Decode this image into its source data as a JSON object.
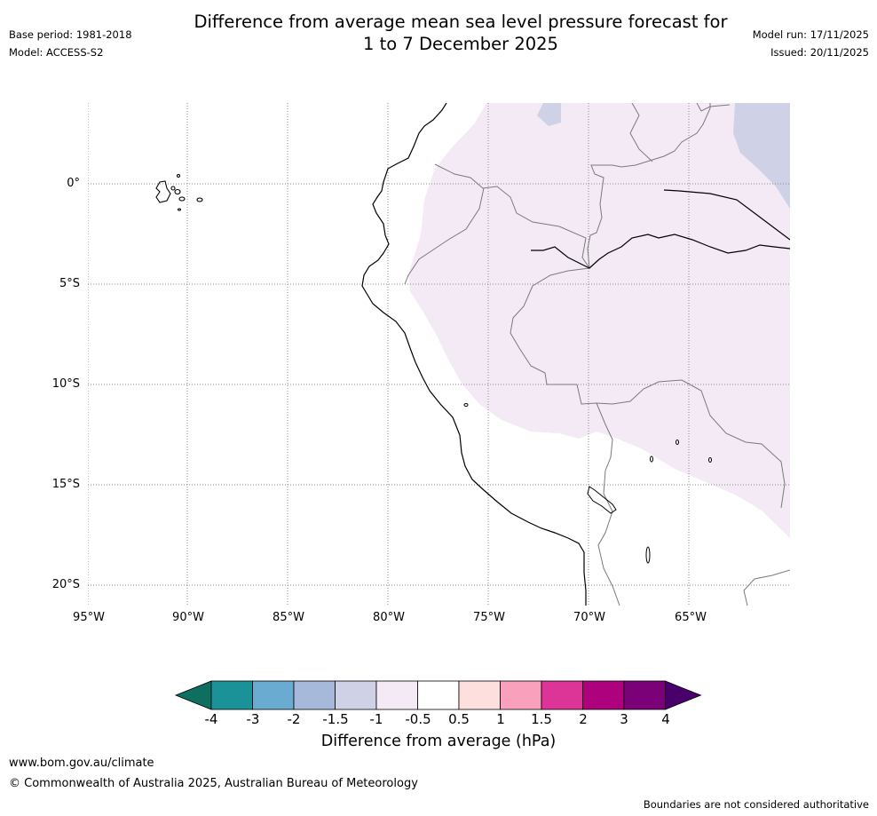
{
  "title": {
    "line1": "Difference from average mean sea level pressure forecast for",
    "line2": "1 to 7 December 2025"
  },
  "metadata": {
    "base_period": "Base period: 1981-2018",
    "model": "Model: ACCESS-S2",
    "model_run": "Model run: 17/11/2025",
    "issued": "Issued: 20/11/2025"
  },
  "map": {
    "region": "Western South America and eastern Pacific Ocean",
    "latitude_labels": [
      "0°",
      "5°S",
      "10°S",
      "15°S",
      "20°S"
    ],
    "longitude_labels": [
      "95°W",
      "90°W",
      "85°W",
      "80°W",
      "75°W",
      "70°W",
      "65°W"
    ],
    "anomaly_areas": [
      {
        "category": "-1 to -0.5 hPa",
        "color": "#f3eaf5",
        "area": "Interior of Peru, Colombia, Brazil and Bolivia"
      },
      {
        "category": "-1.5 to -1 hPa",
        "color": "#cfd2e6",
        "area": "Northeast corner (Venezuela / northern Brazil)"
      }
    ]
  },
  "colorbar": {
    "title": "Difference from average (hPa)",
    "labels": [
      "-4",
      "-3",
      "-2",
      "-1.5",
      "-1",
      "-0.5",
      "0.5",
      "1",
      "1.5",
      "2",
      "3",
      "4"
    ],
    "colors": [
      "#0e6e5f",
      "#1a9298",
      "#6aabd2",
      "#a6b9da",
      "#cfd2e6",
      "#f3eaf5",
      "#ffffff",
      "#fde0de",
      "#f8a0bc",
      "#dd3497",
      "#ae017e",
      "#7a0177",
      "#49006a"
    ]
  },
  "footer": {
    "website": "www.bom.gov.au/climate",
    "copyright": "© Commonwealth of Australia 2025, Australian Bureau of Meteorology",
    "disclaimer": "Boundaries are not considered authoritative"
  }
}
